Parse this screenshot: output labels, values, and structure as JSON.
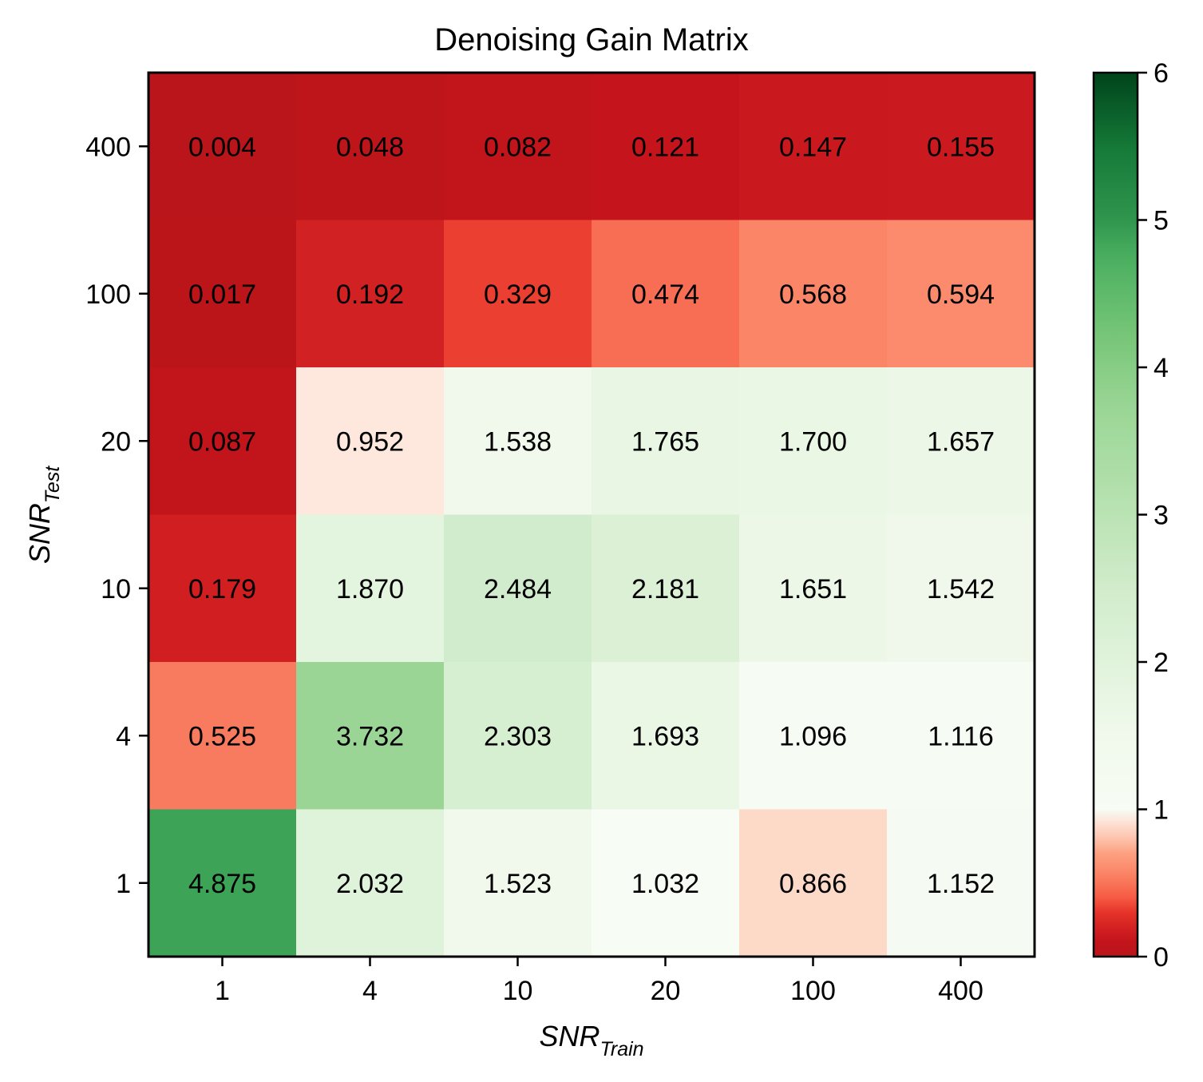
{
  "chart_data": {
    "type": "heatmap",
    "title": "Denoising Gain Matrix",
    "xlabel": {
      "base": "SNR",
      "sub": "Train"
    },
    "ylabel": {
      "base": "SNR",
      "sub": "Test"
    },
    "x_categories": [
      "1",
      "4",
      "10",
      "20",
      "100",
      "400"
    ],
    "y_categories": [
      "400",
      "100",
      "20",
      "10",
      "4",
      "1"
    ],
    "values": [
      [
        0.004,
        0.048,
        0.082,
        0.121,
        0.147,
        0.155
      ],
      [
        0.017,
        0.192,
        0.329,
        0.474,
        0.568,
        0.594
      ],
      [
        0.087,
        0.952,
        1.538,
        1.765,
        1.7,
        1.657
      ],
      [
        0.179,
        1.87,
        2.484,
        2.181,
        1.651,
        1.542
      ],
      [
        0.525,
        3.732,
        2.303,
        1.693,
        1.096,
        1.116
      ],
      [
        4.875,
        2.032,
        1.523,
        1.032,
        0.866,
        1.152
      ]
    ],
    "value_labels": [
      [
        "0.004",
        "0.048",
        "0.082",
        "0.121",
        "0.147",
        "0.155"
      ],
      [
        "0.017",
        "0.192",
        "0.329",
        "0.474",
        "0.568",
        "0.594"
      ],
      [
        "0.087",
        "0.952",
        "1.538",
        "1.765",
        "1.700",
        "1.657"
      ],
      [
        "0.179",
        "1.870",
        "2.484",
        "2.181",
        "1.651",
        "1.542"
      ],
      [
        "0.525",
        "3.732",
        "2.303",
        "1.693",
        "1.096",
        "1.116"
      ],
      [
        "4.875",
        "2.032",
        "1.523",
        "1.032",
        "0.866",
        "1.152"
      ]
    ],
    "colorbar": {
      "range": [
        0,
        6
      ],
      "ticks": [
        "0",
        "1",
        "2",
        "3",
        "4",
        "5",
        "6"
      ],
      "colormap": "red (0) to white (1) to green (6)"
    }
  }
}
